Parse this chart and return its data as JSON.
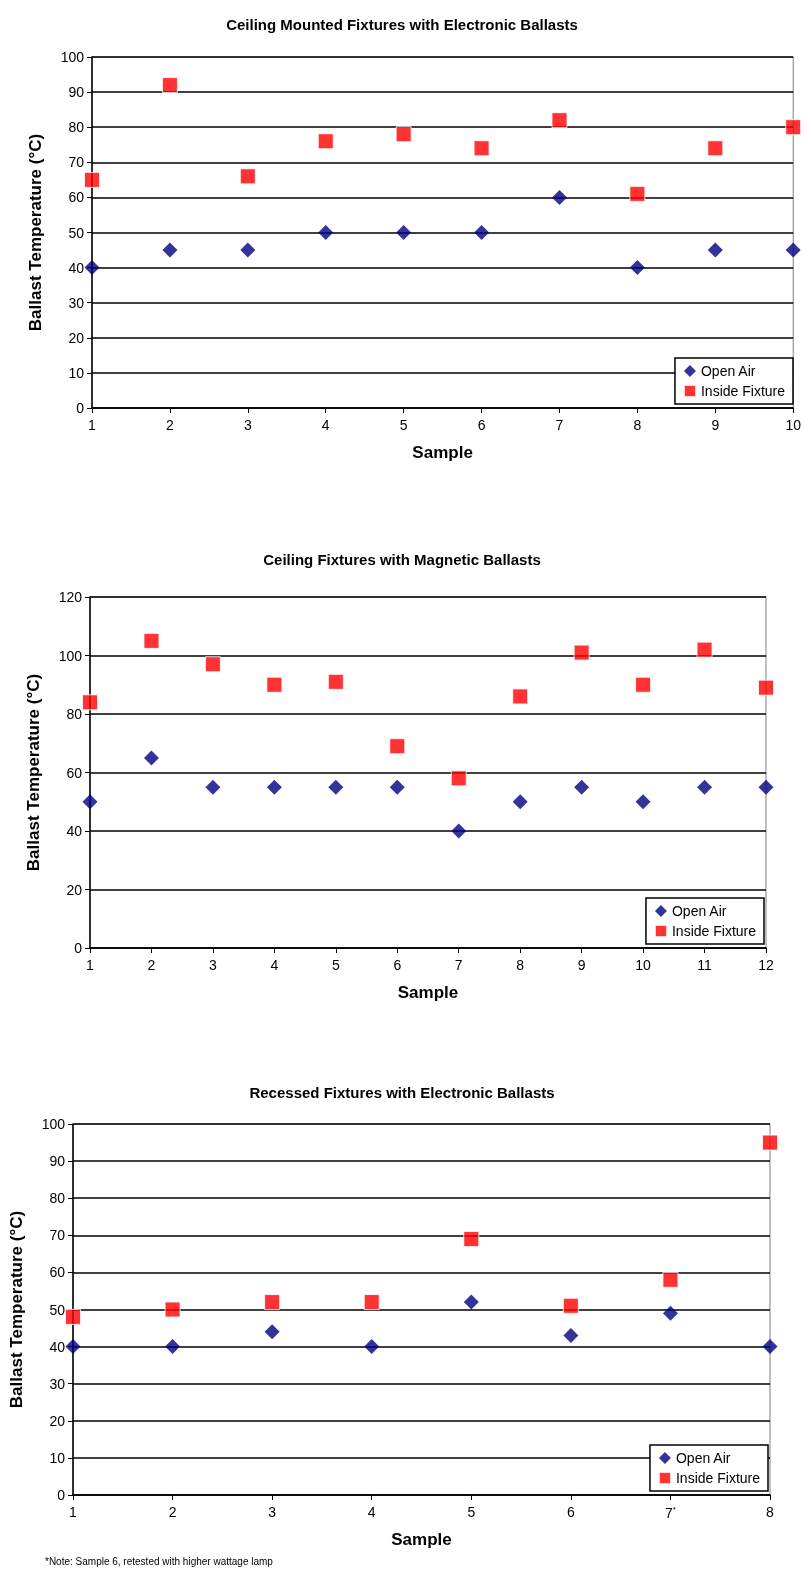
{
  "chart_data": [
    {
      "type": "scatter",
      "title": "Ceiling Mounted Fixtures with Electronic Ballasts",
      "xlabel": "Sample",
      "ylabel": "Ballast Temperature (°C)",
      "x": [
        1,
        2,
        3,
        4,
        5,
        6,
        7,
        8,
        9,
        10
      ],
      "xlim": [
        1,
        10
      ],
      "xticks": [
        1,
        2,
        3,
        4,
        5,
        6,
        7,
        8,
        9,
        10
      ],
      "ylim": [
        0,
        100
      ],
      "yticks": [
        0,
        10,
        20,
        30,
        40,
        50,
        60,
        70,
        80,
        90,
        100
      ],
      "grid": "y",
      "legend": "bottom right",
      "series": [
        {
          "name": "Open Air",
          "color": "#000080",
          "marker": "diamond",
          "values": [
            40,
            45,
            45,
            50,
            50,
            50,
            60,
            40,
            45,
            45
          ]
        },
        {
          "name": "Inside Fixture",
          "color": "#ff0000",
          "marker": "square",
          "values": [
            65,
            92,
            66,
            76,
            78,
            74,
            82,
            61,
            74,
            80
          ]
        }
      ]
    },
    {
      "type": "scatter",
      "title": "Ceiling Fixtures with Magnetic Ballasts",
      "xlabel": "Sample",
      "ylabel": "Ballast Temperature (°C)",
      "x": [
        1,
        2,
        3,
        4,
        5,
        6,
        7,
        8,
        9,
        10,
        11,
        12
      ],
      "xlim": [
        1,
        12
      ],
      "xticks": [
        1,
        2,
        3,
        4,
        5,
        6,
        7,
        8,
        9,
        10,
        11,
        12
      ],
      "ylim": [
        0,
        120
      ],
      "yticks": [
        0,
        20,
        40,
        60,
        80,
        100,
        120
      ],
      "grid": "y",
      "legend": "bottom right",
      "series": [
        {
          "name": "Open Air",
          "color": "#000080",
          "marker": "diamond",
          "values": [
            50,
            65,
            55,
            55,
            55,
            55,
            40,
            50,
            55,
            50,
            55,
            55
          ]
        },
        {
          "name": "Inside Fixture",
          "color": "#ff0000",
          "marker": "square",
          "values": [
            84,
            105,
            97,
            90,
            91,
            69,
            58,
            86,
            101,
            90,
            102,
            89
          ]
        }
      ]
    },
    {
      "type": "scatter",
      "title": "Recessed Fixtures with Electronic Ballasts",
      "xlabel": "Sample",
      "ylabel": "Ballast Temperature (°C)",
      "x": [
        1,
        2,
        3,
        4,
        5,
        6,
        7,
        8
      ],
      "xlim": [
        1,
        8
      ],
      "xticks": [
        1,
        2,
        3,
        4,
        5,
        6,
        {
          "value": 7,
          "label": "7$^{*}$"
        },
        8
      ],
      "ylim": [
        0,
        100
      ],
      "yticks": [
        0,
        10,
        20,
        30,
        40,
        50,
        60,
        70,
        80,
        90,
        100
      ],
      "grid": "y",
      "legend": "bottom right",
      "annotations": [
        "*Note: Sample 6, retested with higher wattage lamp"
      ],
      "series": [
        {
          "name": "Open Air",
          "color": "#000080",
          "marker": "diamond",
          "values": [
            40,
            40,
            44,
            40,
            52,
            43,
            49,
            40
          ]
        },
        {
          "name": "Inside Fixture",
          "color": "#ff0000",
          "marker": "square",
          "values": [
            48,
            50,
            52,
            52,
            69,
            51,
            58,
            95
          ]
        }
      ]
    }
  ]
}
